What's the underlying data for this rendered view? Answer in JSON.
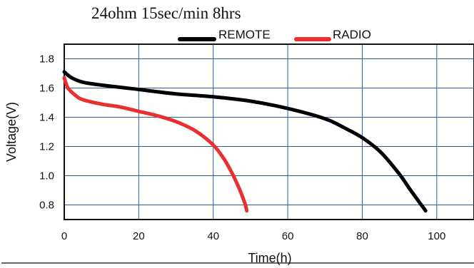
{
  "chart_data": {
    "type": "line",
    "title": "24ohm 15sec/min 8hrs",
    "xlabel": "Time(h)",
    "ylabel": "Voltage(V)",
    "xlim": [
      0,
      110
    ],
    "ylim": [
      0.7,
      1.9
    ],
    "x_ticks": [
      0,
      20,
      40,
      60,
      80,
      100
    ],
    "y_ticks": [
      0.8,
      1.0,
      1.2,
      1.4,
      1.6,
      1.8
    ],
    "x_tick_labels": [
      "0",
      "20",
      "40",
      "60",
      "80",
      "100"
    ],
    "y_tick_labels": [
      "0.8",
      "1.0",
      "1.2",
      "1.4",
      "1.6",
      "1.8"
    ],
    "grid": true,
    "legend_position": "top",
    "series": [
      {
        "name": "REMOTE",
        "color": "#000000",
        "x": [
          0,
          2,
          5,
          10,
          20,
          30,
          40,
          50,
          60,
          70,
          75,
          80,
          85,
          90,
          93,
          97
        ],
        "y": [
          1.71,
          1.67,
          1.64,
          1.62,
          1.59,
          1.56,
          1.54,
          1.51,
          1.46,
          1.39,
          1.33,
          1.26,
          1.16,
          1.01,
          0.9,
          0.76
        ]
      },
      {
        "name": "RADIO",
        "color": "#e8302f",
        "x": [
          0,
          1,
          3,
          5,
          10,
          15,
          20,
          25,
          30,
          35,
          40,
          43,
          45,
          47,
          48.5,
          49
        ],
        "y": [
          1.67,
          1.6,
          1.55,
          1.52,
          1.49,
          1.47,
          1.44,
          1.41,
          1.37,
          1.31,
          1.21,
          1.11,
          1.02,
          0.91,
          0.81,
          0.76
        ]
      }
    ]
  }
}
